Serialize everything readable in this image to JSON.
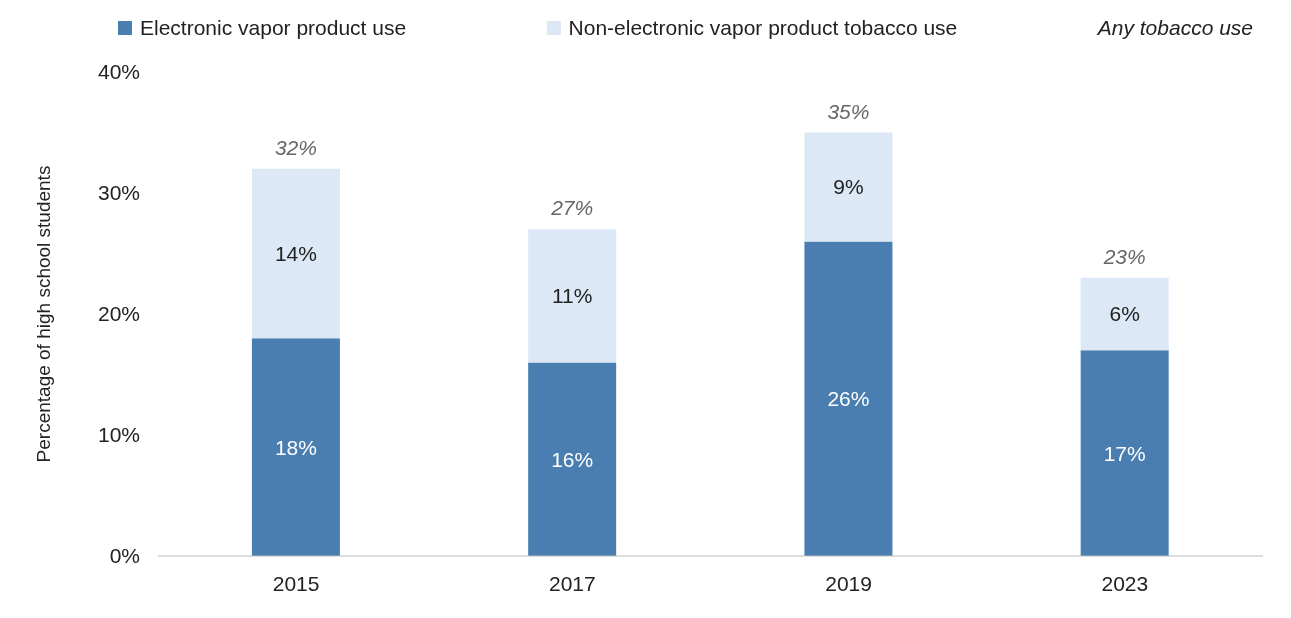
{
  "chart_data": {
    "type": "bar",
    "stacked": true,
    "categories": [
      "2015",
      "2017",
      "2019",
      "2023"
    ],
    "ylabel": "Percentage of high school students",
    "series": [
      {
        "name": "Electronic vapor product use",
        "color": "#4a7eb0",
        "values": [
          18,
          16,
          26,
          17
        ],
        "value_labels": [
          "18%",
          "16%",
          "26%",
          "17%"
        ]
      },
      {
        "name": "Non-electronic vapor product tobacco use",
        "color": "#dce8f5",
        "values": [
          14,
          11,
          9,
          6
        ],
        "value_labels": [
          "14%",
          "11%",
          "9%",
          "6%"
        ]
      }
    ],
    "totals": [
      "32%",
      "27%",
      "35%",
      "23%"
    ],
    "annotations": [
      "Any tobacco use"
    ],
    "ylim": [
      0,
      40
    ],
    "yticks": [
      {
        "value": 0,
        "label": "0%"
      },
      {
        "value": 10,
        "label": "10%"
      },
      {
        "value": 20,
        "label": "20%"
      },
      {
        "value": 30,
        "label": "30%"
      },
      {
        "value": 40,
        "label": "40%"
      }
    ],
    "grid": false,
    "legend": "top"
  }
}
